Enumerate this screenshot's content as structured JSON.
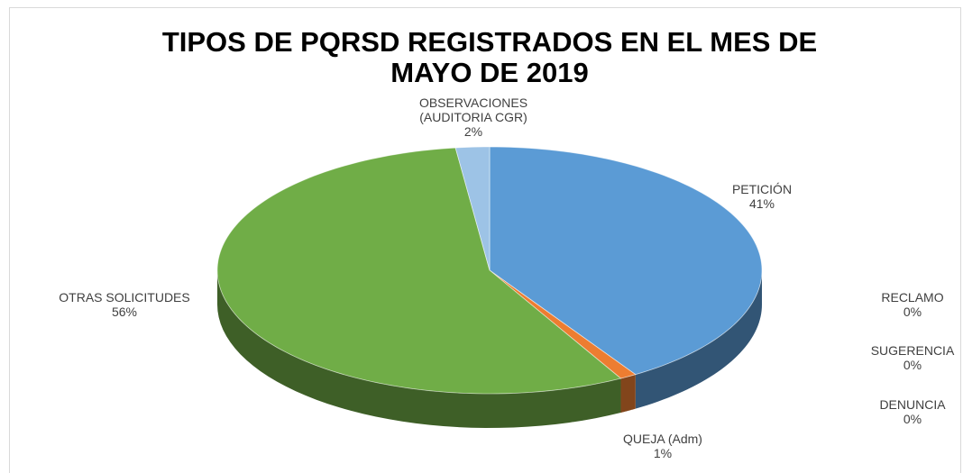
{
  "chart_data": {
    "type": "pie3d",
    "title": "TIPOS DE PQRSD REGISTRADOS EN EL MES DE MAYO DE 2019",
    "categories": [
      "PETICIÓN",
      "RECLAMO",
      "SUGERENCIA",
      "DENUNCIA",
      "QUEJA (Adm)",
      "OTRAS SOLICITUDES",
      "OBSERVACIONES (AUDITORIA CGR)"
    ],
    "values": [
      41,
      0,
      0,
      0,
      1,
      56,
      2
    ],
    "value_labels": [
      "41%",
      "0%",
      "0%",
      "0%",
      "1%",
      "56%",
      "2%"
    ],
    "colors": [
      "#5b9bd5",
      "#a5a5a5",
      "#ffc000",
      "#4472c4",
      "#ed7d31",
      "#70ad47",
      "#9dc3e6"
    ]
  }
}
